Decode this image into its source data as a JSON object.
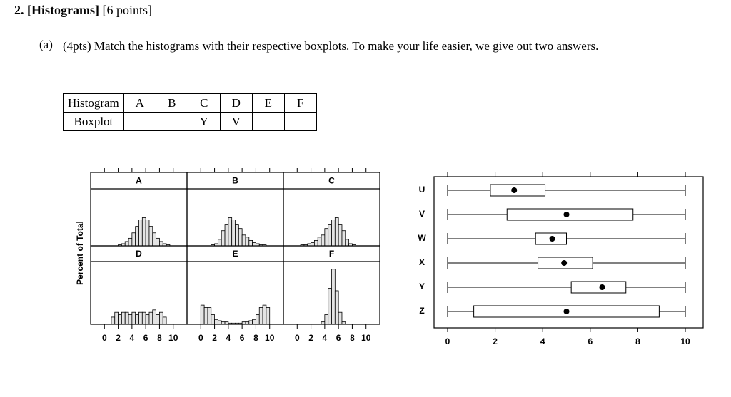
{
  "header": {
    "number_title": "2. [Histograms]",
    "points": "[6 points]"
  },
  "question": {
    "label": "(a)",
    "text": "(4pts) Match the histograms with their respective boxplots. To make your life easier, we give out two answers."
  },
  "table": {
    "rows": [
      [
        "Histogram",
        "A",
        "B",
        "C",
        "D",
        "E",
        "F"
      ],
      [
        "Boxplot",
        null,
        null,
        "Y",
        "V",
        null,
        null
      ]
    ]
  },
  "chart_data": [
    {
      "type": "histogram",
      "title": "A",
      "y_label": "Percent of Total",
      "bins": [
        0,
        0.5,
        1,
        1.5,
        2,
        2.5,
        3,
        3.5,
        4,
        4.5,
        5,
        5.5,
        6,
        6.5,
        7,
        7.5,
        8,
        8.5,
        9,
        9.5,
        10
      ],
      "values": [
        0,
        0,
        0,
        0,
        0.5,
        1,
        2,
        3.5,
        6,
        9,
        12,
        13,
        12,
        9,
        6,
        3.5,
        2,
        1,
        0.5,
        0
      ],
      "xlim": [
        -2,
        12
      ],
      "ylim": [
        0,
        25
      ],
      "xticks": [
        0,
        2,
        4,
        6,
        8,
        10
      ]
    },
    {
      "type": "histogram",
      "title": "B",
      "bins": [
        0,
        0.5,
        1,
        1.5,
        2,
        2.5,
        3,
        3.5,
        4,
        4.5,
        5,
        5.5,
        6,
        6.5,
        7,
        7.5,
        8,
        8.5,
        9,
        9.5,
        10
      ],
      "values": [
        0,
        0,
        0,
        0.5,
        1,
        3,
        7,
        10,
        13,
        12,
        10,
        8,
        5,
        4,
        2.5,
        1.5,
        1,
        0.5,
        0.5,
        0
      ],
      "xlim": [
        -2,
        12
      ],
      "ylim": [
        0,
        25
      ],
      "xticks": [
        0,
        2,
        4,
        6,
        8,
        10
      ]
    },
    {
      "type": "histogram",
      "title": "C",
      "bins": [
        0,
        0.5,
        1,
        1.5,
        2,
        2.5,
        3,
        3.5,
        4,
        4.5,
        5,
        5.5,
        6,
        6.5,
        7,
        7.5,
        8,
        8.5,
        9,
        9.5,
        10
      ],
      "values": [
        0,
        0.5,
        0.5,
        1,
        1.5,
        2.5,
        4,
        5,
        8,
        10,
        12,
        13,
        10,
        7,
        3,
        1,
        0.5,
        0,
        0,
        0
      ],
      "xlim": [
        -2,
        12
      ],
      "ylim": [
        0,
        25
      ],
      "xticks": [
        0,
        2,
        4,
        6,
        8,
        10
      ]
    },
    {
      "type": "histogram",
      "title": "D",
      "bins": [
        0,
        0.5,
        1,
        1.5,
        2,
        2.5,
        3,
        3.5,
        4,
        4.5,
        5,
        5.5,
        6,
        6.5,
        7,
        7.5,
        8,
        8.5,
        9,
        9.5,
        10
      ],
      "values": [
        0,
        0,
        3,
        5,
        4,
        5,
        5,
        4,
        5,
        4,
        5,
        5,
        4,
        5,
        6,
        4,
        5,
        3,
        0,
        0
      ],
      "xlim": [
        -2,
        12
      ],
      "ylim": [
        0,
        25
      ],
      "xticks": [
        0,
        2,
        4,
        6,
        8,
        10
      ]
    },
    {
      "type": "histogram",
      "title": "E",
      "bins": [
        0,
        0.5,
        1,
        1.5,
        2,
        2.5,
        3,
        3.5,
        4,
        4.5,
        5,
        5.5,
        6,
        6.5,
        7,
        7.5,
        8,
        8.5,
        9,
        9.5,
        10
      ],
      "values": [
        8,
        7,
        7,
        4,
        2,
        1.5,
        1,
        1,
        0.5,
        0.5,
        0.5,
        0.5,
        1,
        1,
        1.5,
        2,
        4,
        7,
        8,
        7
      ],
      "xlim": [
        -2,
        12
      ],
      "ylim": [
        0,
        25
      ],
      "xticks": [
        0,
        2,
        4,
        6,
        8,
        10
      ]
    },
    {
      "type": "histogram",
      "title": "F",
      "bins": [
        0,
        0.5,
        1,
        1.5,
        2,
        2.5,
        3,
        3.5,
        4,
        4.5,
        5,
        5.5,
        6,
        6.5,
        7,
        7.5,
        8,
        8.5,
        9,
        9.5,
        10
      ],
      "values": [
        0,
        0,
        0,
        0,
        0,
        0,
        0,
        1,
        4,
        15,
        23,
        14,
        5,
        1,
        0,
        0,
        0,
        0,
        0,
        0
      ],
      "xlim": [
        -2,
        12
      ],
      "ylim": [
        0,
        25
      ],
      "xticks": [
        0,
        2,
        4,
        6,
        8,
        10
      ]
    },
    {
      "type": "boxplot",
      "categories": [
        "U",
        "V",
        "W",
        "X",
        "Y",
        "Z"
      ],
      "min": [
        0,
        0,
        0,
        0,
        0,
        0
      ],
      "q1": [
        1.8,
        2.5,
        3.7,
        3.8,
        5.2,
        1.1
      ],
      "center": [
        2.8,
        5,
        4.4,
        4.9,
        6.5,
        5
      ],
      "q3": [
        4.1,
        7.8,
        5,
        6.1,
        7.5,
        8.9
      ],
      "max": [
        10,
        10,
        10,
        10,
        10,
        10
      ],
      "xlim": [
        -0.57,
        10.75
      ],
      "xticks": [
        0,
        2,
        4,
        6,
        8,
        10
      ]
    }
  ]
}
